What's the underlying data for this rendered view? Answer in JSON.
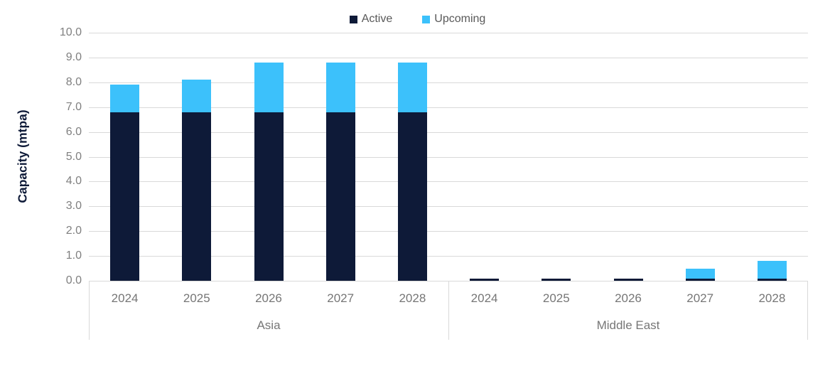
{
  "chart_data": {
    "type": "bar",
    "stacked": true,
    "title": "",
    "ylabel": "Capacity (mtpa)",
    "xlabel": "",
    "ylim": [
      0,
      10
    ],
    "y_tick_step": 1.0,
    "y_tick_labels": [
      "0.0",
      "1.0",
      "2.0",
      "3.0",
      "4.0",
      "5.0",
      "6.0",
      "7.0",
      "8.0",
      "9.0",
      "10.0"
    ],
    "grid": true,
    "legend_position": "top",
    "groups": [
      {
        "label": "Asia",
        "categories": [
          "2024",
          "2025",
          "2026",
          "2027",
          "2028"
        ]
      },
      {
        "label": "Middle East",
        "categories": [
          "2024",
          "2025",
          "2026",
          "2027",
          "2028"
        ]
      }
    ],
    "series": [
      {
        "name": "Active",
        "color": "#0E1A38",
        "values": [
          [
            6.8,
            6.8,
            6.8,
            6.8,
            6.8
          ],
          [
            0.1,
            0.1,
            0.1,
            0.1,
            0.1
          ]
        ]
      },
      {
        "name": "Upcoming",
        "color": "#3CC1FB",
        "values": [
          [
            1.1,
            1.3,
            2.0,
            2.0,
            2.0
          ],
          [
            0.0,
            0.0,
            0.0,
            0.4,
            0.7
          ]
        ]
      }
    ],
    "colors": {
      "gridline": "#D9D9D9",
      "tick_text": "#7F7F7F",
      "legend_text": "#595959",
      "axis_title_text": "#0E1A38"
    }
  }
}
